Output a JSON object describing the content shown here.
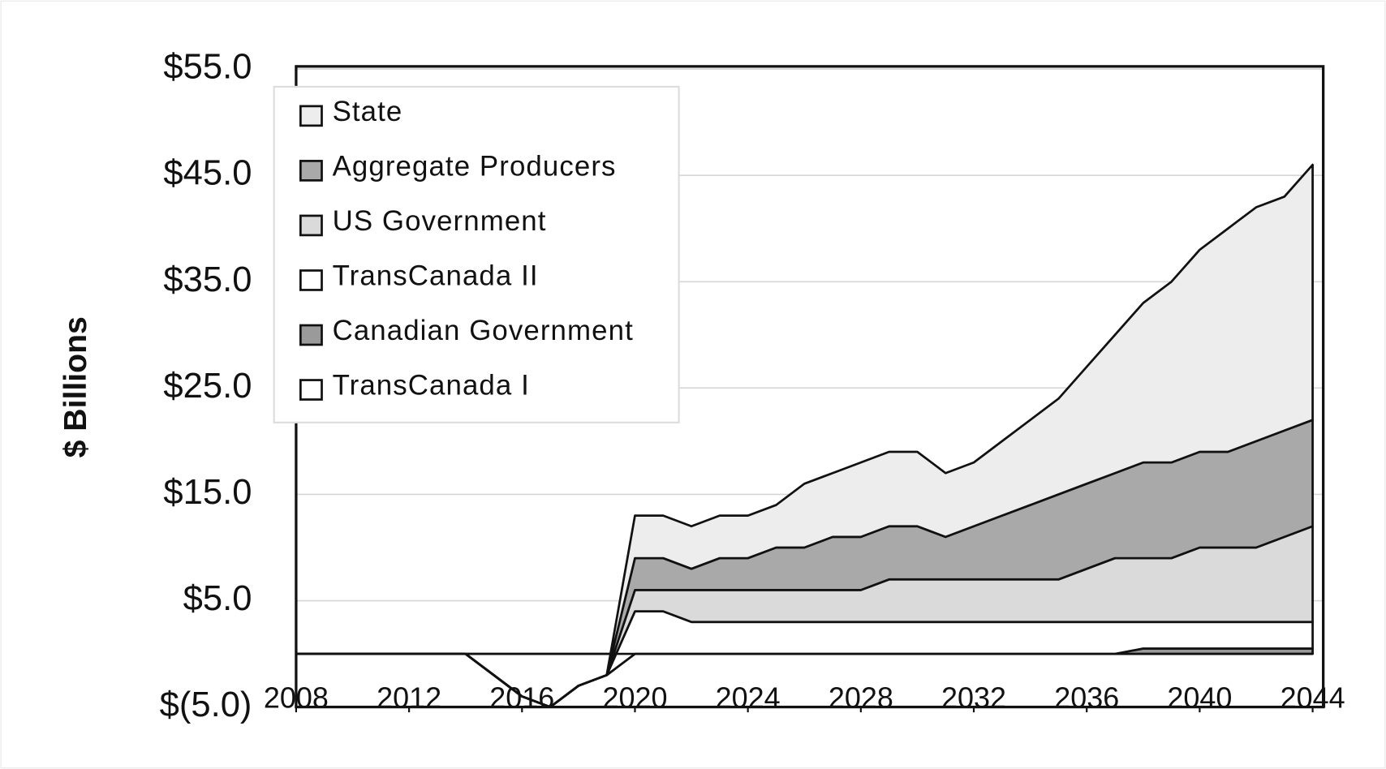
{
  "chart_data": {
    "type": "stacked-area",
    "y_label": "$ Billions",
    "x": [
      2008,
      2009,
      2010,
      2011,
      2012,
      2013,
      2014,
      2015,
      2016,
      2017,
      2018,
      2019,
      2020,
      2021,
      2022,
      2023,
      2024,
      2025,
      2026,
      2027,
      2028,
      2029,
      2030,
      2031,
      2032,
      2033,
      2034,
      2035,
      2036,
      2037,
      2038,
      2039,
      2040,
      2041,
      2042,
      2043,
      2044
    ],
    "xlim": [
      2008,
      2044
    ],
    "xticks": [
      2008,
      2012,
      2016,
      2020,
      2024,
      2028,
      2032,
      2036,
      2040,
      2044
    ],
    "ylim": [
      -5,
      55
    ],
    "yticks": [
      {
        "value": -5,
        "label": "$(5.0)"
      },
      {
        "value": 5,
        "label": "$5.0"
      },
      {
        "value": 15,
        "label": "$15.0"
      },
      {
        "value": 25,
        "label": "$25.0"
      },
      {
        "value": 35,
        "label": "$35.0"
      },
      {
        "value": 45,
        "label": "$45.0"
      },
      {
        "value": 55,
        "label": "$55.0"
      }
    ],
    "grid": true,
    "legend": "upper left",
    "series": [
      {
        "name": "State",
        "color": "#ededed",
        "values": [
          0,
          0,
          0,
          0,
          0,
          0,
          0,
          0,
          0,
          0,
          0,
          0,
          4,
          4,
          4,
          4,
          4,
          4,
          6,
          6,
          7,
          7,
          7,
          6,
          6,
          7,
          8,
          9,
          11,
          13,
          15,
          17,
          19,
          21,
          22,
          22,
          24
        ]
      },
      {
        "name": "Aggregate Producers",
        "color": "#a9a9a9",
        "values": [
          0,
          0,
          0,
          0,
          0,
          0,
          0,
          0,
          0,
          0,
          0,
          0,
          3,
          3,
          2,
          3,
          3,
          4,
          4,
          5,
          5,
          5,
          5,
          4,
          5,
          6,
          7,
          8,
          8,
          8,
          9,
          9,
          9,
          9,
          10,
          10,
          10
        ]
      },
      {
        "name": "US Government",
        "color": "#dadada",
        "values": [
          0,
          0,
          0,
          0,
          0,
          0,
          0,
          0,
          0,
          0,
          0,
          0,
          2,
          2,
          3,
          3,
          3,
          3,
          3,
          3,
          3,
          4,
          4,
          4,
          4,
          4,
          4,
          4,
          5,
          6,
          6,
          6,
          7,
          7,
          7,
          8,
          9
        ]
      },
      {
        "name": "TransCanada II",
        "color": "#ffffff",
        "values": [
          0,
          0,
          0,
          0,
          0,
          0,
          0,
          0,
          0,
          0,
          0,
          0,
          4,
          4,
          3,
          3,
          3,
          3,
          3,
          3,
          3,
          3,
          3,
          3,
          3,
          3,
          3,
          3,
          3,
          3,
          2.5,
          2.5,
          2.5,
          2.5,
          2.5,
          2.5,
          2.5
        ]
      },
      {
        "name": "Canadian Government",
        "color": "#9a9a9a",
        "values": [
          0,
          0,
          0,
          0,
          0,
          0,
          0,
          0,
          0,
          0,
          0,
          0,
          0,
          0,
          0,
          0,
          0,
          0,
          0,
          0,
          0,
          0,
          0,
          0,
          0,
          0,
          0,
          0,
          0,
          0,
          0.5,
          0.5,
          0.5,
          0.5,
          0.5,
          0.5,
          0.5
        ]
      },
      {
        "name": "TransCanada I",
        "color": "#ffffff",
        "values": [
          0,
          0,
          0,
          0,
          0,
          0,
          0,
          -2,
          -4,
          -5,
          -3,
          -2,
          0,
          0,
          0,
          0,
          0,
          0,
          0,
          0,
          0,
          0,
          0,
          0,
          0,
          0,
          0,
          0,
          0,
          0,
          0,
          0,
          0,
          0,
          0,
          0,
          0
        ]
      }
    ]
  }
}
